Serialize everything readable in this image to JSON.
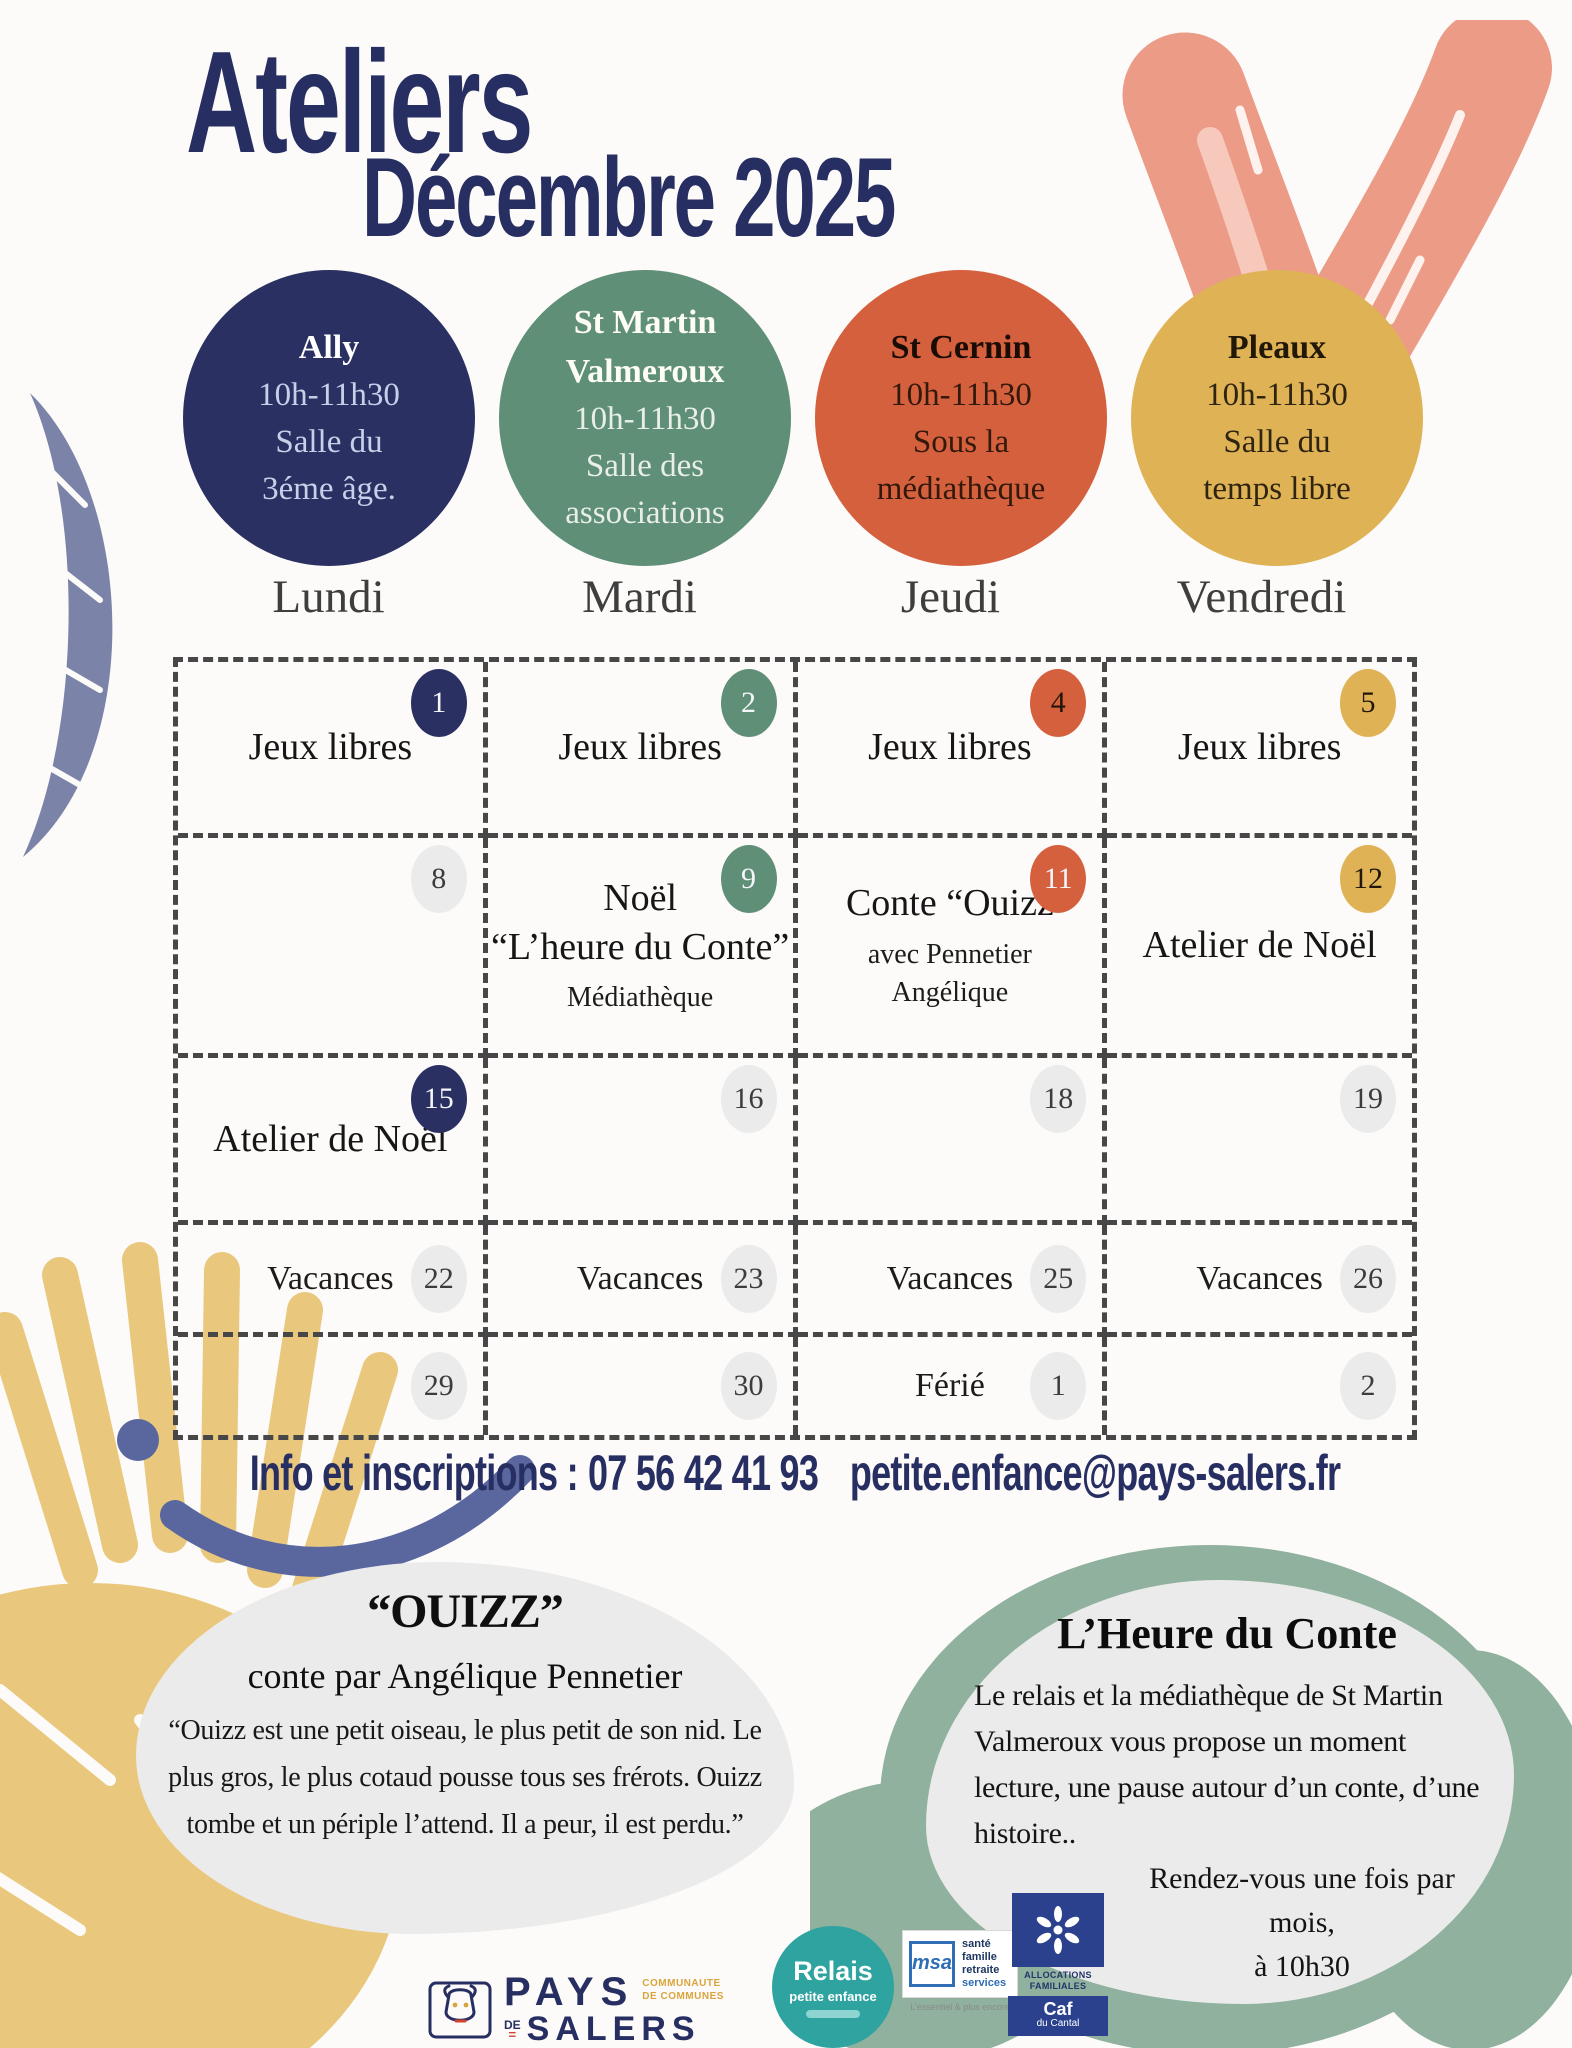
{
  "title": {
    "line1": "Ateliers",
    "line2": "Décembre 2025"
  },
  "locations": [
    {
      "name_lines": [
        "Ally"
      ],
      "time": "10h-11h30",
      "place_lines": [
        "Salle du",
        "3éme âge."
      ],
      "bg": "#2a3162",
      "name_color": "#ffffff",
      "body_color": "#c9cfe9"
    },
    {
      "name_lines": [
        "St Martin",
        "Valmeroux"
      ],
      "time": "10h-11h30",
      "place_lines": [
        "Salle des",
        "associations"
      ],
      "bg": "#5f8f76",
      "name_color": "#fdfdf5",
      "body_color": "#e9efe6"
    },
    {
      "name_lines": [
        "St Cernin"
      ],
      "time": "10h-11h30",
      "place_lines": [
        "Sous la",
        "médiathèque"
      ],
      "bg": "#d5603e",
      "name_color": "#1a0c04",
      "body_color": "#33190a"
    },
    {
      "name_lines": [
        "Pleaux"
      ],
      "time": "10h-11h30",
      "place_lines": [
        "Salle du",
        "temps libre"
      ],
      "bg": "#deb255",
      "name_color": "#211807",
      "body_color": "#2f2410"
    }
  ],
  "calendar": {
    "day_headers": [
      "Lundi",
      "Mardi",
      "Jeudi",
      "Vendredi"
    ],
    "row_layouts": [
      "corner",
      "corner",
      "corner",
      "inline",
      "inline"
    ],
    "rows": [
      [
        {
          "date": "1",
          "badge": "navy",
          "badge_text": "light",
          "title_lines": [
            "Jeux libres"
          ]
        },
        {
          "date": "2",
          "badge": "green",
          "badge_text": "light",
          "title_lines": [
            "Jeux libres"
          ]
        },
        {
          "date": "4",
          "badge": "orange",
          "badge_text": "dark",
          "title_lines": [
            "Jeux libres"
          ]
        },
        {
          "date": "5",
          "badge": "yellow",
          "badge_text": "dark",
          "title_lines": [
            "Jeux libres"
          ]
        }
      ],
      [
        {
          "date": "8",
          "badge": "gray",
          "badge_text": "gray"
        },
        {
          "date": "9",
          "badge": "green",
          "badge_text": "light",
          "title_lines": [
            "Noël",
            "“L’heure du Conte”"
          ],
          "sub_lines": [
            "Médiathèque"
          ]
        },
        {
          "date": "11",
          "badge": "orange",
          "badge_text": "light",
          "title_lines": [
            "Conte “Ouizz"
          ],
          "sub_lines": [
            "avec Pennetier",
            "Angélique"
          ]
        },
        {
          "date": "12",
          "badge": "yellow",
          "badge_text": "dark",
          "title_lines": [
            "Atelier de Noël"
          ]
        }
      ],
      [
        {
          "date": "15",
          "badge": "navy",
          "badge_text": "light",
          "title_lines": [
            "Atelier de Noël"
          ]
        },
        {
          "date": "16",
          "badge": "gray",
          "badge_text": "gray"
        },
        {
          "date": "18",
          "badge": "gray",
          "badge_text": "gray"
        },
        {
          "date": "19",
          "badge": "gray",
          "badge_text": "gray"
        }
      ],
      [
        {
          "date": "22",
          "badge": "gray",
          "badge_text": "gray",
          "label": "Vacances"
        },
        {
          "date": "23",
          "badge": "gray",
          "badge_text": "gray",
          "label": "Vacances"
        },
        {
          "date": "25",
          "badge": "gray",
          "badge_text": "gray",
          "label": "Vacances"
        },
        {
          "date": "26",
          "badge": "gray",
          "badge_text": "gray",
          "label": "Vacances"
        }
      ],
      [
        {
          "date": "29",
          "badge": "gray",
          "badge_text": "gray"
        },
        {
          "date": "30",
          "badge": "gray",
          "badge_text": "gray"
        },
        {
          "date": "1",
          "badge": "gray",
          "badge_text": "gray",
          "label": "Férié"
        },
        {
          "date": "2",
          "badge": "gray",
          "badge_text": "gray"
        }
      ]
    ]
  },
  "info": {
    "label": "Info et inscriptions :",
    "phone": "07 56 42 41 93",
    "email": "petite.enfance@pays-salers.fr"
  },
  "story_bubble": {
    "title": "“OUIZZ”",
    "subtitle": "conte par Angélique Pennetier",
    "quote_lines": [
      "“Ouizz est une petit oiseau, le plus petit de son nid. Le",
      "plus gros, le plus cotaud pousse tous ses frérots. Ouizz",
      "tombe et un périple l’attend. Il a peur, il est perdu.”"
    ]
  },
  "heure_bubble": {
    "title": "L’Heure du Conte",
    "body_lines": [
      "Le relais et la médiathèque de St Martin",
      "Valmeroux vous propose un moment",
      "lecture, une pause autour d’un conte, d’une",
      "histoire.."
    ],
    "footer_lines": [
      "Rendez-vous une fois par mois,",
      "à 10h30"
    ]
  },
  "logos": {
    "pays": {
      "name": "PAYS",
      "cc_line1": "COMMUNAUTE",
      "cc_line2": "DE COMMUNES",
      "de": "DE",
      "salers": "SALERS"
    },
    "relais": {
      "line1": "Relais",
      "line2": "petite enfance"
    },
    "msa": {
      "brand": "msa",
      "services": [
        "santé",
        "famille",
        "retraite",
        "services"
      ],
      "tagline": "L’essentiel & plus encore"
    },
    "caf": {
      "caption_line1": "ALLOCATIONS",
      "caption_line2": "FAMILIALES",
      "bottom_line1": "Caf",
      "bottom_line2": "du Cantal"
    }
  },
  "colors": {
    "title_navy": "#272e62",
    "bubble_gray": "#ebebeb",
    "accent_salmon": "#ec9b87",
    "accent_bluegray": "#7b84a8",
    "accent_stroke_blue": "#5a679e",
    "accent_sun": "#e9c87d",
    "accent_scribble": "#8fb19d",
    "badges": {
      "navy": "#2a3162",
      "green": "#5f8f76",
      "orange": "#d5603e",
      "yellow": "#deb255",
      "gray": "#ebebeb"
    },
    "badge_text": {
      "light": "#f5f6fb",
      "dark": "#22150a",
      "gray": "#3c3c3c"
    }
  }
}
